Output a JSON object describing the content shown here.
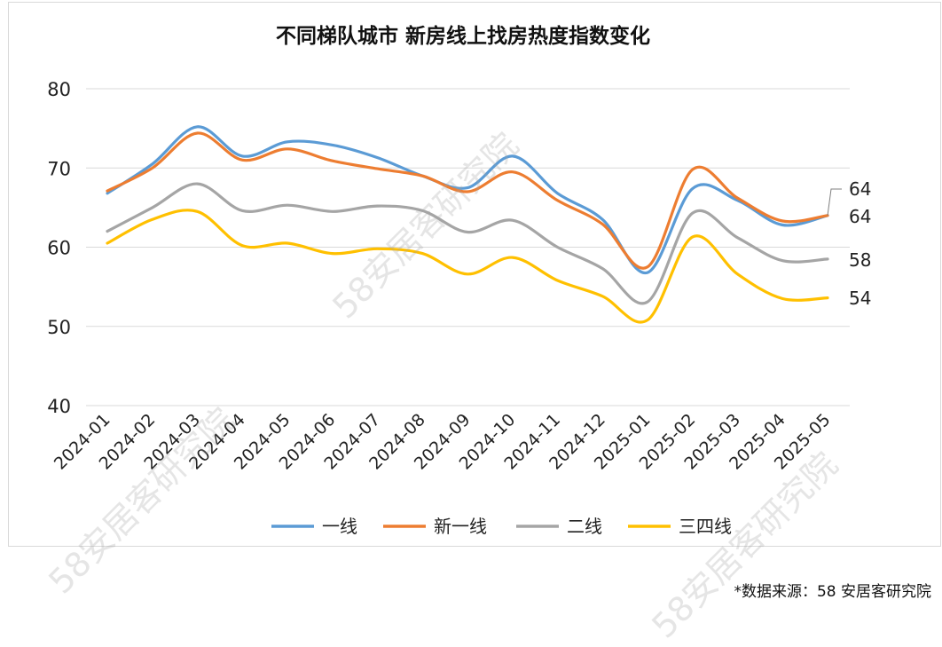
{
  "chart_data": {
    "type": "line",
    "title": "不同梯队城市 新房线上找房热度指数变化",
    "x": [
      "2024-01",
      "2024-02",
      "2024-03",
      "2024-04",
      "2024-05",
      "2024-06",
      "2024-07",
      "2024-08",
      "2024-09",
      "2024-10",
      "2024-11",
      "2024-12",
      "2025-01",
      "2025-02",
      "2025-03",
      "2025-04",
      "2025-05"
    ],
    "ylim": [
      40,
      80
    ],
    "yticks": [
      "40",
      "50",
      "60",
      "70",
      "80"
    ],
    "grid": true,
    "legend_position": "bottom",
    "series": [
      {
        "name": "一线",
        "color": "#5B9BD5",
        "values": [
          66.8,
          70.5,
          75.2,
          71.5,
          73.3,
          72.9,
          71.3,
          69.0,
          67.5,
          71.5,
          66.8,
          63.5,
          56.8,
          67.4,
          65.9,
          62.8,
          64.0
        ],
        "end_label": "64"
      },
      {
        "name": "新一线",
        "color": "#ED7D31",
        "values": [
          67.1,
          70.0,
          74.4,
          71.0,
          72.4,
          70.9,
          69.9,
          69.0,
          67.0,
          69.5,
          65.9,
          62.9,
          57.5,
          69.8,
          66.2,
          63.3,
          64.0
        ],
        "end_label": "64"
      },
      {
        "name": "二线",
        "color": "#A5A5A5",
        "values": [
          62.0,
          65.0,
          68.0,
          64.6,
          65.3,
          64.5,
          65.2,
          64.6,
          61.9,
          63.4,
          60.0,
          57.3,
          53.1,
          64.3,
          61.2,
          58.3,
          58.5
        ],
        "end_label": "58"
      },
      {
        "name": "三四线",
        "color": "#FFC000",
        "values": [
          60.5,
          63.5,
          64.5,
          60.2,
          60.5,
          59.2,
          59.8,
          59.2,
          56.6,
          58.7,
          55.8,
          53.8,
          50.8,
          61.3,
          56.6,
          53.5,
          53.6
        ],
        "end_label": "54"
      }
    ]
  },
  "source": "*数据来源：58 安居客研究院",
  "watermark": "58安居客研究院"
}
